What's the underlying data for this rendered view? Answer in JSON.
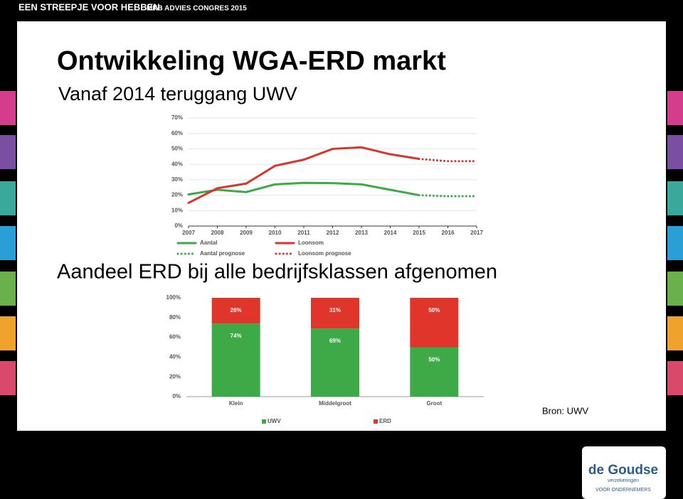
{
  "header": {
    "title": "EEN STREEPJE VOOR HEBBEN",
    "subtitle": "MKB ADVIES CONGRES 2015"
  },
  "title": "Ontwikkeling WGA-ERD markt",
  "subtitle": "Vanaf 2014 teruggang UWV",
  "section_title": "Aandeel ERD bij alle bedrijfsklassen afgenomen",
  "source": "Bron: UWV",
  "logo": {
    "name": "de Goudse",
    "line1": "verzekeringen",
    "line2": "VOOR ONDERNEMERS"
  },
  "chart_data": [
    {
      "type": "line",
      "x": [
        2007,
        2008,
        2009,
        2010,
        2011,
        2012,
        2013,
        2014,
        2015,
        2016,
        2017
      ],
      "xlim": [
        2007,
        2017
      ],
      "xticks": [
        2007,
        2008,
        2009,
        2010,
        2011,
        2012,
        2013,
        2014,
        2015,
        2016,
        2017
      ],
      "ylim": [
        0,
        70
      ],
      "yticks": [
        {
          "value": 0,
          "label": "0%"
        },
        {
          "value": 10,
          "label": "10%"
        },
        {
          "value": 20,
          "label": "20%"
        },
        {
          "value": 30,
          "label": "30%"
        },
        {
          "value": 40,
          "label": "40%"
        },
        {
          "value": 50,
          "label": "50%"
        },
        {
          "value": 60,
          "label": "60%"
        },
        {
          "value": 70,
          "label": "70%"
        }
      ],
      "grid": true,
      "series": [
        {
          "name": "Aantal",
          "color": "#3daa47",
          "dash": "solid",
          "values": [
            20.5,
            23.5,
            22,
            27,
            28,
            27.8,
            27,
            23.5,
            20,
            null,
            null
          ]
        },
        {
          "name": "Loonsom",
          "color": "#d9352c",
          "dash": "solid",
          "values": [
            15,
            24.5,
            27.5,
            39,
            43,
            50,
            51,
            46.5,
            43.5,
            null,
            null
          ]
        },
        {
          "name": "Aantal prognose",
          "color": "#3daa47",
          "dash": "dotted",
          "values": [
            null,
            null,
            null,
            null,
            null,
            null,
            null,
            null,
            20,
            19.3,
            19.3
          ]
        },
        {
          "name": "Loonsom prognose",
          "color": "#d9352c",
          "dash": "dotted",
          "values": [
            null,
            null,
            null,
            null,
            null,
            null,
            null,
            null,
            43.5,
            42,
            42
          ]
        }
      ]
    },
    {
      "type": "bar",
      "stacked": true,
      "categories": [
        "Klein",
        "Middelgroot",
        "Groot"
      ],
      "ylim": [
        0,
        100
      ],
      "yticks": [
        {
          "value": 0,
          "label": "0%"
        },
        {
          "value": 20,
          "label": "20%"
        },
        {
          "value": 40,
          "label": "40%"
        },
        {
          "value": 60,
          "label": "60%"
        },
        {
          "value": 80,
          "label": "80%"
        },
        {
          "value": 100,
          "label": "100%"
        }
      ],
      "grid": false,
      "series": [
        {
          "name": "UWV",
          "color": "#3daa47",
          "values": [
            74,
            69,
            50
          ],
          "value_labels": [
            "74%",
            "69%",
            "50%"
          ]
        },
        {
          "name": "ERD",
          "color": "#e0352b",
          "values": [
            26,
            31,
            50
          ],
          "value_labels": [
            "26%",
            "31%",
            "50%"
          ]
        }
      ]
    }
  ]
}
